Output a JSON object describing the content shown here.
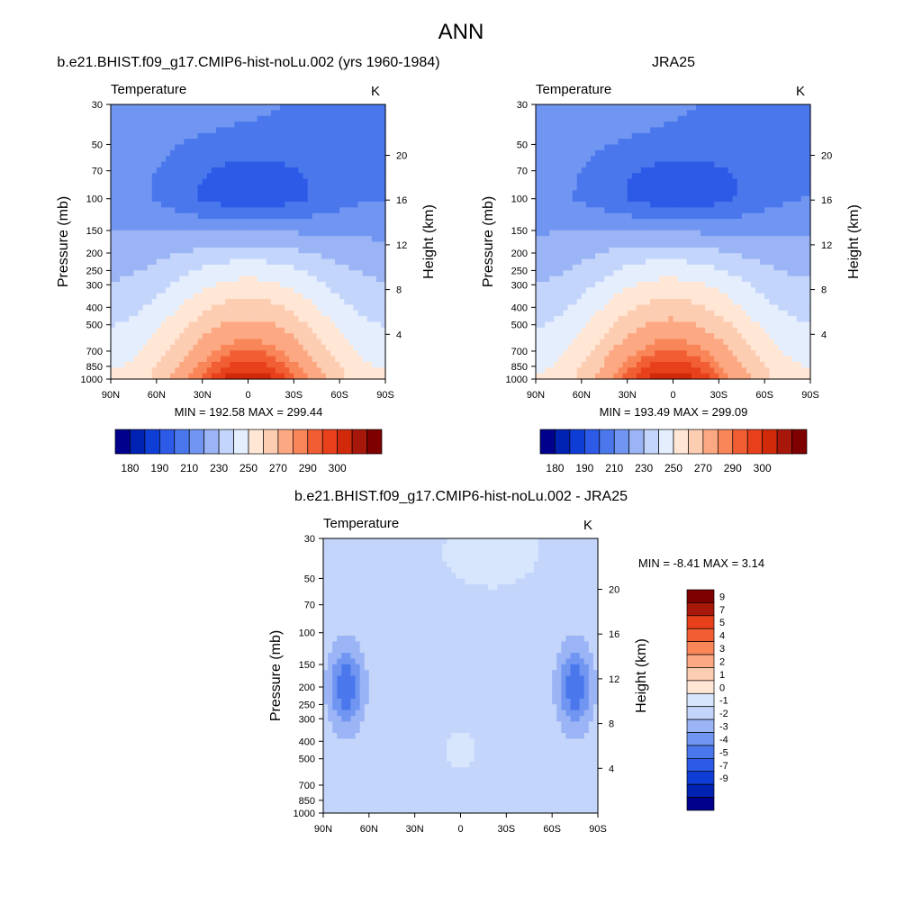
{
  "figure": {
    "title": "ANN"
  },
  "chart_data": [
    {
      "type": "heatmap",
      "title": "b.e21.BHIST.f09_g17.CMIP6-hist-noLu.002 (yrs 1960-1984)",
      "left_label": "Temperature",
      "units": "K",
      "ylabel": "Pressure (mb)",
      "ylabel_right": "Height (km)",
      "x_ticks": [
        "90N",
        "60N",
        "30N",
        "0",
        "30S",
        "60S",
        "90S"
      ],
      "y_ticks": [
        "30",
        "50",
        "70",
        "100",
        "150",
        "200",
        "250",
        "300",
        "400",
        "500",
        "700",
        "850",
        "1000"
      ],
      "height_ticks": [
        "4",
        "8",
        "12",
        "16",
        "20"
      ],
      "stats": "MIN = 192.58  MAX = 299.44",
      "min": 192.58,
      "max": 299.44,
      "levels": [
        180,
        185,
        190,
        200,
        210,
        220,
        230,
        240,
        250,
        260,
        270,
        280,
        285,
        290,
        295,
        300
      ],
      "colorbar_labels": [
        "180",
        "190",
        "210",
        "230",
        "250",
        "270",
        "290",
        "300"
      ]
    },
    {
      "type": "heatmap",
      "title": "JRA25",
      "left_label": "Temperature",
      "units": "K",
      "ylabel": "Pressure (mb)",
      "ylabel_right": "Height (km)",
      "x_ticks": [
        "90N",
        "60N",
        "30N",
        "0",
        "30S",
        "60S",
        "90S"
      ],
      "y_ticks": [
        "30",
        "50",
        "70",
        "100",
        "150",
        "200",
        "250",
        "300",
        "400",
        "500",
        "700",
        "850",
        "1000"
      ],
      "height_ticks": [
        "4",
        "8",
        "12",
        "16",
        "20"
      ],
      "stats": "MIN = 193.49  MAX = 299.09",
      "min": 193.49,
      "max": 299.09,
      "levels": [
        180,
        185,
        190,
        200,
        210,
        220,
        230,
        240,
        250,
        260,
        270,
        280,
        285,
        290,
        295,
        300
      ],
      "colorbar_labels": [
        "180",
        "190",
        "210",
        "230",
        "250",
        "270",
        "290",
        "300"
      ]
    },
    {
      "type": "heatmap",
      "title": "b.e21.BHIST.f09_g17.CMIP6-hist-noLu.002 - JRA25",
      "left_label": "Temperature",
      "units": "K",
      "ylabel": "Pressure (mb)",
      "ylabel_right": "Height (km)",
      "x_ticks": [
        "90N",
        "60N",
        "30N",
        "0",
        "30S",
        "60S",
        "90S"
      ],
      "y_ticks": [
        "30",
        "50",
        "70",
        "100",
        "150",
        "200",
        "250",
        "300",
        "400",
        "500",
        "700",
        "850",
        "1000"
      ],
      "height_ticks": [
        "4",
        "8",
        "12",
        "16",
        "20"
      ],
      "stats": "MIN =  -8.41  MAX =   3.14",
      "min": -8.41,
      "max": 3.14,
      "levels": [
        -9,
        -7,
        -5,
        -4,
        -3,
        -2,
        -1,
        0,
        1,
        2,
        3,
        4,
        5,
        7,
        9
      ],
      "colorbar_labels": [
        "9",
        "7",
        "5",
        "4",
        "3",
        "2",
        "1",
        "0",
        "-1",
        "-2",
        "-3",
        "-4",
        "-5",
        "-7",
        "-9"
      ]
    }
  ],
  "palette": [
    "#00008c",
    "#0022b3",
    "#0f3ed6",
    "#2d5ae6",
    "#4a78ec",
    "#7196f2",
    "#9ab4f5",
    "#c3d5fb",
    "#e4eefd",
    "#ffe6d5",
    "#fdcdb2",
    "#fca883",
    "#f98659",
    "#f15e34",
    "#e8401a",
    "#d02a0b",
    "#a8180a",
    "#7f0000"
  ],
  "diff_palette": [
    "#00008c",
    "#0022b3",
    "#0f3ed6",
    "#2d5ae6",
    "#4a78ec",
    "#7196f2",
    "#9ab4f5",
    "#c3d5fb",
    "#d7e6fc",
    "#ffe6d5",
    "#fdcdb2",
    "#fca883",
    "#f98659",
    "#f15e34",
    "#e8401a",
    "#a8180a",
    "#7f0000"
  ]
}
